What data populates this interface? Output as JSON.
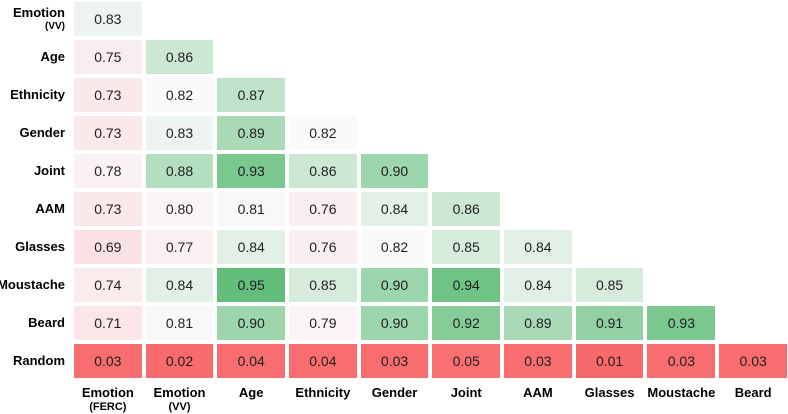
{
  "page": {
    "background": "#FFFFFF"
  },
  "chart_data": {
    "type": "heatmap",
    "title": "",
    "shape": "lower-triangular",
    "rows": [
      {
        "label": "Emotion",
        "sublabel": "(VV)"
      },
      {
        "label": "Age",
        "sublabel": ""
      },
      {
        "label": "Ethnicity",
        "sublabel": ""
      },
      {
        "label": "Gender",
        "sublabel": ""
      },
      {
        "label": "Joint",
        "sublabel": ""
      },
      {
        "label": "AAM",
        "sublabel": ""
      },
      {
        "label": "Glasses",
        "sublabel": ""
      },
      {
        "label": "Moustache",
        "sublabel": ""
      },
      {
        "label": "Beard",
        "sublabel": ""
      },
      {
        "label": "Random",
        "sublabel": ""
      }
    ],
    "columns": [
      {
        "label": "Emotion",
        "sublabel": "(FERC)"
      },
      {
        "label": "Emotion",
        "sublabel": "(VV)"
      },
      {
        "label": "Age",
        "sublabel": ""
      },
      {
        "label": "Ethnicity",
        "sublabel": ""
      },
      {
        "label": "Gender",
        "sublabel": ""
      },
      {
        "label": "Joint",
        "sublabel": ""
      },
      {
        "label": "AAM",
        "sublabel": ""
      },
      {
        "label": "Glasses",
        "sublabel": ""
      },
      {
        "label": "Moustache",
        "sublabel": ""
      },
      {
        "label": "Beard",
        "sublabel": ""
      }
    ],
    "values": [
      [
        0.83
      ],
      [
        0.75,
        0.86
      ],
      [
        0.73,
        0.82,
        0.87
      ],
      [
        0.73,
        0.83,
        0.89,
        0.82
      ],
      [
        0.78,
        0.88,
        0.93,
        0.86,
        0.9
      ],
      [
        0.73,
        0.8,
        0.81,
        0.76,
        0.84,
        0.86
      ],
      [
        0.69,
        0.77,
        0.84,
        0.76,
        0.82,
        0.85,
        0.84
      ],
      [
        0.74,
        0.84,
        0.95,
        0.85,
        0.9,
        0.94,
        0.84,
        0.85
      ],
      [
        0.71,
        0.81,
        0.9,
        0.79,
        0.9,
        0.92,
        0.89,
        0.91,
        0.93
      ],
      [
        0.03,
        0.02,
        0.04,
        0.04,
        0.03,
        0.05,
        0.03,
        0.01,
        0.03,
        0.03
      ]
    ],
    "value_decimals": 2,
    "colormap": {
      "type": "diverging-3point",
      "min_value": 0.01,
      "min_color": "#F8696B",
      "mid_value": 0.82,
      "mid_color": "#FAF9FB",
      "max_value": 0.95,
      "max_color": "#63BE7B"
    },
    "cell_text_color": "#1F1F1F",
    "label_text_color": "#000000",
    "legend": "none",
    "grid": "off"
  }
}
